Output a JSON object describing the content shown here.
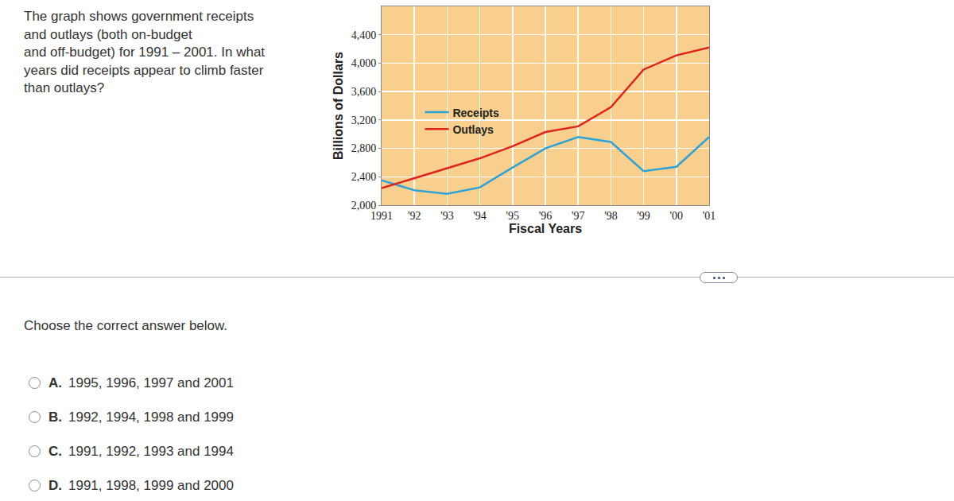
{
  "question_lines": [
    "The graph shows government receipts",
    "and outlays (both on-budget",
    "and off-budget) for 1991 – 2001. In what",
    "years did receipts appear to climb faster",
    "than outlays?"
  ],
  "prompt": "Choose the correct answer below.",
  "options": [
    {
      "letter": "A.",
      "text": "1995, 1996, 1997 and 2001"
    },
    {
      "letter": "B.",
      "text": "1992, 1994, 1998 and 1999"
    },
    {
      "letter": "C.",
      "text": "1991, 1992, 1993 and 1994"
    },
    {
      "letter": "D.",
      "text": "1991, 1998, 1999 and 2000"
    }
  ],
  "chart_data": {
    "type": "line",
    "x_label": "Fiscal Years",
    "y_label": "Billions of Dollars",
    "categories": [
      "1991",
      "'92",
      "'93",
      "'94",
      "'95",
      "'96",
      "'97",
      "'98",
      "'99",
      "'00",
      "'01"
    ],
    "series": [
      {
        "name": "Receipts",
        "color": "#2ea3d8",
        "values": [
          2350,
          2210,
          2160,
          2250,
          2530,
          2800,
          2960,
          2890,
          2480,
          2540,
          2960
        ]
      },
      {
        "name": "Outlays",
        "color": "#e0231c",
        "values": [
          2240,
          2380,
          2520,
          2660,
          2830,
          3030,
          3110,
          3380,
          3910,
          4110,
          4220
        ]
      }
    ],
    "ylim": [
      2000,
      4800
    ],
    "yticks": [
      {
        "value": 2000,
        "label": "2,000"
      },
      {
        "value": 2400,
        "label": "2,400"
      },
      {
        "value": 2800,
        "label": "2,800"
      },
      {
        "value": 3200,
        "label": "3,200"
      },
      {
        "value": 3600,
        "label": "3,600"
      },
      {
        "value": 4000,
        "label": "4,000"
      },
      {
        "value": 4400,
        "label": "4,400"
      }
    ],
    "grid": true,
    "legend": "upper left"
  }
}
